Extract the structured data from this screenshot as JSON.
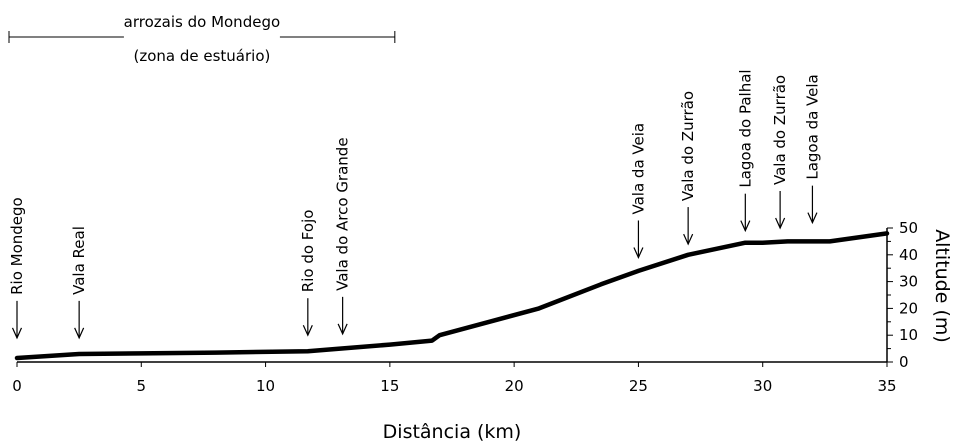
{
  "chart_data": {
    "type": "line",
    "title": "",
    "xlabel": "Distância (km)",
    "ylabel": "Altitude (m)",
    "xlim": [
      0,
      35
    ],
    "ylim": [
      0,
      50
    ],
    "xticks": [
      "0",
      "5",
      "10",
      "15",
      "20",
      "25",
      "30",
      "35"
    ],
    "yticks": [
      "0",
      "10",
      "20",
      "30",
      "40",
      "50"
    ],
    "grid": false,
    "series": [
      {
        "x": [
          0,
          2.5,
          5,
          8,
          11.7,
          13,
          15,
          16.7,
          17,
          19,
          21,
          23.5,
          25,
          27,
          29.3,
          30,
          31,
          32.7,
          35
        ],
        "y": [
          1.5,
          3,
          3.2,
          3.5,
          4,
          5,
          6.5,
          8,
          10,
          15,
          20,
          29,
          34,
          40,
          44.5,
          44.5,
          45,
          45,
          48
        ]
      }
    ],
    "annotations": [
      {
        "text": "Rio Mondego",
        "x": 0,
        "arrow_y": 9
      },
      {
        "text": "Vala Real",
        "x": 2.5,
        "arrow_y": 9
      },
      {
        "text": "Rio do Fojo",
        "x": 11.7,
        "arrow_y": 10
      },
      {
        "text": "Vala do Arco Grande",
        "x": 13.1,
        "arrow_y": 10.5
      },
      {
        "text": "Vala da Veia",
        "x": 25,
        "arrow_y": 39
      },
      {
        "text": "Vala do Zurrão",
        "x": 27,
        "arrow_y": 44
      },
      {
        "text": "Lagoa do Palhal",
        "x": 29.3,
        "arrow_y": 49
      },
      {
        "text": "Vala do Zurrão",
        "x": 30.7,
        "arrow_y": 50
      },
      {
        "text": "Lagoa da Vela",
        "x": 32,
        "arrow_y": 52
      }
    ],
    "zone": {
      "label_line1": "arrozais do Mondego",
      "label_line2": "(zona de estuário)",
      "x_start": 0,
      "x_end": 15.2
    }
  }
}
